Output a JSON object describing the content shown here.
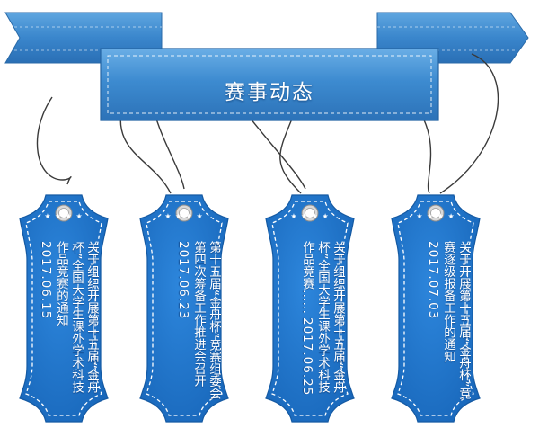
{
  "banner": {
    "title": "赛事动态"
  },
  "tags": [
    {
      "title": "关于组织开展第十五届“金舟杯”全国大学生课外学术科技作品竞赛的通知",
      "date": "2017.06.15"
    },
    {
      "title": "第十五届“金舟杯”竞赛组委会 第四次筹备工作推进会召开",
      "date": "2017.06.23"
    },
    {
      "title": "关于组织开展第十五届“金舟杯”全国大学生课外学术科技作品竞赛……",
      "date": "2017.06.25"
    },
    {
      "title": "关于开展第十五届“金舟杯”竞赛逐级报备工作的通知",
      "date": "2017.07.03"
    }
  ],
  "colors": {
    "tag_blue": "#1f72c9",
    "banner_blue": "#3b86c8",
    "ribbon_dark": "#1d5e9c"
  },
  "icons": {
    "tag_hole": "ring-hole-icon",
    "stars": "star-row-icon"
  }
}
